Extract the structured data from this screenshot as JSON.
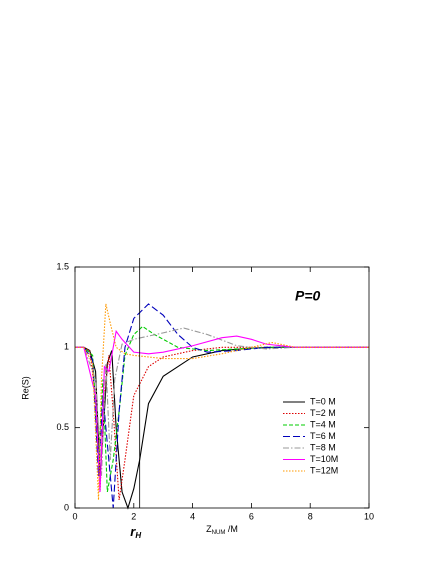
{
  "chart_data": {
    "type": "line",
    "ylabel": "Re(S)",
    "xlabel": {
      "main": "Z",
      "sub": "NUM",
      "tail": " /M"
    },
    "annotation": "P=0",
    "marker_line": {
      "x": 2.2,
      "label": "r",
      "sub": "H"
    },
    "xlim": [
      0,
      10
    ],
    "xticks": [
      0,
      2,
      4,
      6,
      8,
      10
    ],
    "ylim": [
      0,
      1.5
    ],
    "yticks": [
      0,
      0.5,
      1,
      1.5
    ],
    "legend": "lower right",
    "series": [
      {
        "name": "T=0 M",
        "color": "#000000",
        "style": "solid",
        "x": [
          0,
          0.3,
          0.5,
          0.7,
          0.85,
          1.0,
          1.1,
          1.25,
          1.4,
          1.6,
          1.8,
          2.0,
          2.2,
          2.5,
          3,
          4,
          5,
          6,
          7,
          10
        ],
        "values": [
          1,
          1,
          0.98,
          0.85,
          0.2,
          0.6,
          0.9,
          0.98,
          0.5,
          0.1,
          0.0,
          0.12,
          0.3,
          0.65,
          0.82,
          0.94,
          0.98,
          0.995,
          1,
          1
        ]
      },
      {
        "name": "T=2 M",
        "color": "#dd0000",
        "style": "dotted",
        "x": [
          0,
          0.3,
          0.5,
          0.7,
          0.85,
          1.0,
          1.15,
          1.3,
          1.5,
          1.7,
          2.0,
          2.5,
          3,
          4,
          5,
          10
        ],
        "values": [
          1,
          1,
          0.98,
          0.7,
          0.1,
          0.7,
          0.95,
          0.6,
          0.05,
          0.3,
          0.7,
          0.88,
          0.94,
          0.98,
          1,
          1
        ]
      },
      {
        "name": "T=4 M",
        "color": "#00cc00",
        "style": "dashed",
        "x": [
          0,
          0.3,
          0.6,
          0.8,
          0.95,
          1.1,
          1.3,
          1.5,
          1.7,
          2.0,
          2.3,
          2.7,
          3.5,
          4.5,
          5.5,
          6.5,
          10
        ],
        "values": [
          1,
          1,
          0.95,
          0.3,
          0.8,
          0.1,
          0.3,
          0.6,
          0.95,
          1.08,
          1.13,
          1.08,
          1.0,
          0.98,
          0.99,
          1,
          1
        ]
      },
      {
        "name": "T=6 M",
        "color": "#0000bb",
        "style": "longdash",
        "x": [
          0,
          0.3,
          0.6,
          0.8,
          0.95,
          1.1,
          1.3,
          1.5,
          1.7,
          2.0,
          2.5,
          3,
          3.5,
          4,
          4.5,
          5.5,
          6.5,
          10
        ],
        "values": [
          1,
          1,
          0.92,
          0.2,
          0.7,
          0.4,
          0.0,
          0.6,
          1.0,
          1.18,
          1.27,
          1.2,
          1.08,
          1.0,
          0.97,
          0.98,
          1,
          1
        ]
      },
      {
        "name": "T=8 M",
        "color": "#999999",
        "style": "dashdot",
        "x": [
          0,
          0.3,
          0.7,
          0.9,
          1.05,
          1.2,
          1.35,
          1.6,
          2,
          2.5,
          3,
          3.7,
          4.5,
          5.5,
          6.5,
          7.5,
          10
        ],
        "values": [
          1,
          1,
          0.8,
          0.2,
          0.9,
          0.3,
          0.8,
          1.02,
          1.05,
          1.07,
          1.09,
          1.12,
          1.08,
          1.01,
          0.99,
          1,
          1
        ]
      },
      {
        "name": "T=10M",
        "color": "#ff00ff",
        "style": "solid",
        "x": [
          0,
          0.3,
          0.7,
          0.85,
          1.0,
          1.15,
          1.4,
          1.6,
          2,
          2.5,
          3,
          4,
          5,
          5.5,
          6,
          6.5,
          7.5,
          10
        ],
        "values": [
          1,
          1,
          0.7,
          0.1,
          0.88,
          0.85,
          1.1,
          1.05,
          0.97,
          0.96,
          0.97,
          1.01,
          1.06,
          1.07,
          1.05,
          1.02,
          1,
          1
        ]
      },
      {
        "name": "T=12M",
        "color": "#ff9900",
        "style": "dotted",
        "x": [
          0,
          0.3,
          0.6,
          0.8,
          0.9,
          1.05,
          1.2,
          1.4,
          1.7,
          2,
          3,
          4,
          5,
          6,
          6.7,
          7.5,
          10
        ],
        "values": [
          1,
          1,
          0.9,
          0.05,
          0.8,
          1.27,
          1.15,
          1.0,
          0.96,
          0.95,
          0.93,
          0.93,
          0.96,
          1.0,
          1.03,
          1,
          1
        ]
      }
    ]
  }
}
